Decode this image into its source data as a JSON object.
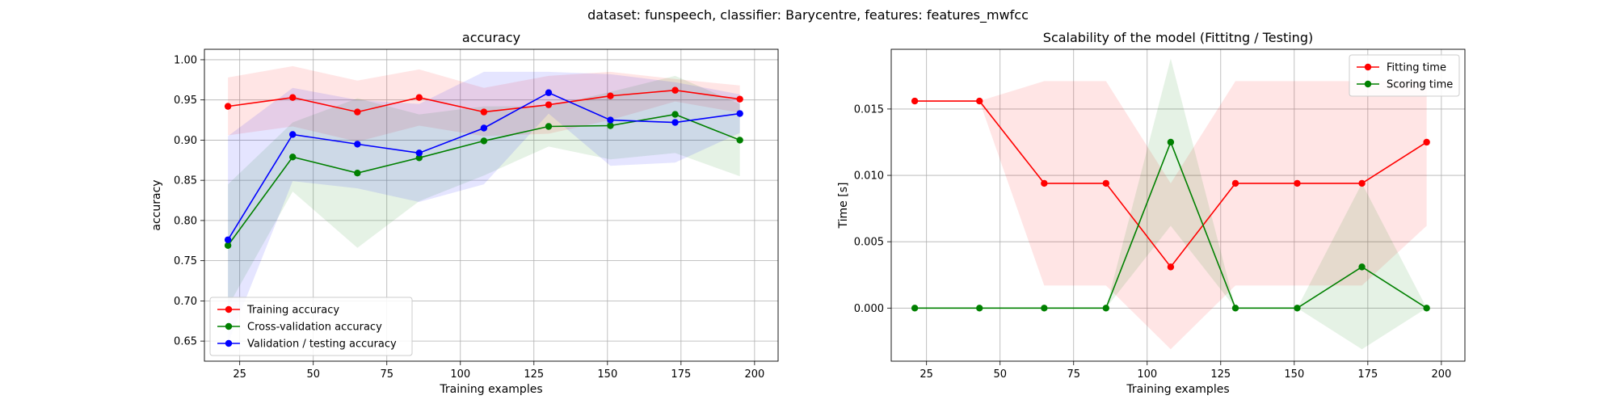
{
  "figure": {
    "suptitle": "dataset: funspeech, classifier: Barycentre, features: features_mwfcc"
  },
  "chart_data": [
    {
      "type": "line",
      "title": "accuracy",
      "xlabel": "Training examples",
      "ylabel": "accuracy",
      "xlim": [
        13,
        208
      ],
      "ylim": [
        0.625,
        1.013
      ],
      "xticks": [
        25,
        50,
        75,
        100,
        125,
        150,
        175,
        200
      ],
      "yticks": [
        0.65,
        0.7,
        0.75,
        0.8,
        0.85,
        0.9,
        0.95,
        1.0
      ],
      "ytick_format": 2,
      "grid": true,
      "legend": "lower-left",
      "x": [
        21,
        43,
        65,
        86,
        108,
        130,
        151,
        173,
        195
      ],
      "series": [
        {
          "name": "Training accuracy",
          "color": "#ff0000",
          "values": [
            0.942,
            0.953,
            0.935,
            0.953,
            0.935,
            0.944,
            0.955,
            0.962,
            0.951
          ],
          "upper": [
            0.978,
            0.992,
            0.974,
            0.988,
            0.965,
            0.98,
            0.985,
            0.976,
            0.968
          ],
          "lower": [
            0.906,
            0.917,
            0.898,
            0.918,
            0.905,
            0.908,
            0.925,
            0.948,
            0.934
          ]
        },
        {
          "name": "Cross-validation accuracy",
          "color": "#008000",
          "values": [
            0.769,
            0.879,
            0.859,
            0.878,
            0.899,
            0.917,
            0.918,
            0.932,
            0.9
          ],
          "upper": [
            0.845,
            0.922,
            0.952,
            0.932,
            0.942,
            0.942,
            0.96,
            0.98,
            0.945
          ],
          "lower": [
            0.693,
            0.836,
            0.766,
            0.824,
            0.856,
            0.892,
            0.876,
            0.884,
            0.855
          ]
        },
        {
          "name": "Validation / testing accuracy",
          "color": "#0000ff",
          "values": [
            0.776,
            0.907,
            0.895,
            0.884,
            0.915,
            0.959,
            0.925,
            0.922,
            0.933
          ],
          "upper": [
            0.905,
            0.965,
            0.95,
            0.945,
            0.985,
            0.985,
            0.982,
            0.972,
            0.957
          ],
          "lower": [
            0.647,
            0.849,
            0.84,
            0.823,
            0.845,
            0.933,
            0.868,
            0.872,
            0.909
          ]
        }
      ]
    },
    {
      "type": "line",
      "title": "Scalability of the model (Fittitng / Testing)",
      "xlabel": "Training examples",
      "ylabel": "Time [s]",
      "xlim": [
        13,
        208
      ],
      "ylim": [
        -0.004,
        0.0195
      ],
      "xticks": [
        25,
        50,
        75,
        100,
        125,
        150,
        175,
        200
      ],
      "yticks": [
        0.0,
        0.005,
        0.01,
        0.015
      ],
      "ytick_format": 3,
      "grid": true,
      "legend": "upper-right",
      "x": [
        21,
        43,
        65,
        86,
        108,
        130,
        151,
        173,
        195
      ],
      "series": [
        {
          "name": "Fitting time",
          "color": "#ff0000",
          "values": [
            0.0156,
            0.0156,
            0.0094,
            0.0094,
            0.0031,
            0.0094,
            0.0094,
            0.0094,
            0.0125
          ],
          "upper": [
            0.0156,
            0.0156,
            0.0171,
            0.0171,
            0.0094,
            0.0171,
            0.0171,
            0.0171,
            0.0171
          ],
          "lower": [
            0.0156,
            0.0156,
            0.0017,
            0.0017,
            -0.0031,
            0.0017,
            0.0017,
            0.0017,
            0.0062
          ]
        },
        {
          "name": "Scoring time",
          "color": "#008000",
          "values": [
            0.0,
            0.0,
            0.0,
            0.0,
            0.0125,
            0.0,
            0.0,
            0.0031,
            0.0
          ],
          "upper": [
            0.0,
            0.0,
            0.0,
            0.0,
            0.0188,
            0.0,
            0.0,
            0.0094,
            0.0
          ],
          "lower": [
            0.0,
            0.0,
            0.0,
            0.0,
            0.0062,
            0.0,
            0.0,
            -0.0031,
            0.0
          ]
        }
      ]
    }
  ]
}
